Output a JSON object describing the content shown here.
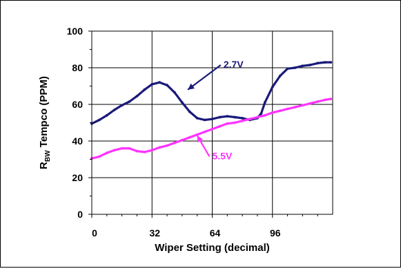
{
  "chart_data": {
    "type": "line",
    "xlabel": "Wiper Setting (decimal)",
    "ylabel": {
      "main": "R",
      "sub": "BW",
      "rest": " Tempco (PPM)"
    },
    "xlim": [
      0,
      128
    ],
    "ylim": [
      0,
      100
    ],
    "x_ticks": [
      0,
      32,
      64,
      96
    ],
    "y_ticks": [
      0,
      20,
      40,
      60,
      80,
      100
    ],
    "x_tick_labels": [
      "0",
      "32",
      "64",
      "96"
    ],
    "y_tick_labels": [
      "0",
      "20",
      "40",
      "60",
      "80",
      "100"
    ],
    "grid": true,
    "series": [
      {
        "name": "2.7V",
        "color": "#1a1a7a",
        "x": [
          0,
          4,
          8,
          12,
          16,
          20,
          24,
          28,
          32,
          36,
          40,
          44,
          48,
          52,
          56,
          60,
          64,
          68,
          72,
          76,
          80,
          84,
          88,
          90,
          92,
          96,
          100,
          104,
          108,
          112,
          116,
          120,
          124,
          127
        ],
        "values": [
          49.5,
          51.5,
          54,
          57,
          59.5,
          61.5,
          64.5,
          68,
          71,
          72,
          70.5,
          66.5,
          61,
          56,
          52.5,
          51.5,
          52,
          53,
          53.5,
          53,
          52.5,
          51.5,
          52.5,
          55,
          61,
          69.5,
          75.5,
          79.5,
          80,
          81,
          81.5,
          82.5,
          83,
          83
        ]
      },
      {
        "name": "5.5V",
        "color": "#ff33ff",
        "x": [
          0,
          4,
          8,
          12,
          16,
          20,
          24,
          28,
          32,
          36,
          40,
          44,
          48,
          52,
          56,
          60,
          64,
          68,
          72,
          76,
          80,
          84,
          88,
          92,
          96,
          100,
          104,
          108,
          112,
          116,
          120,
          124,
          127
        ],
        "values": [
          30.5,
          31.5,
          33.5,
          35,
          36,
          36,
          34.5,
          34,
          35,
          36.5,
          37.5,
          39,
          40.5,
          42,
          43.5,
          45,
          46.5,
          48,
          49.5,
          50,
          51,
          52,
          53,
          54,
          55.5,
          56.5,
          57.5,
          58.5,
          59.5,
          60.5,
          61.5,
          62.5,
          63
        ]
      }
    ],
    "annotations": [
      {
        "text": "2.7V",
        "series": "2.7V",
        "text_x": 70,
        "text_y": 80,
        "arrow_to_x": 51,
        "arrow_to_y": 68
      },
      {
        "text": "5.5V",
        "series": "5.5V",
        "text_x": 64,
        "text_y": 30,
        "arrow_to_x": 56,
        "arrow_to_y": 43
      }
    ]
  }
}
